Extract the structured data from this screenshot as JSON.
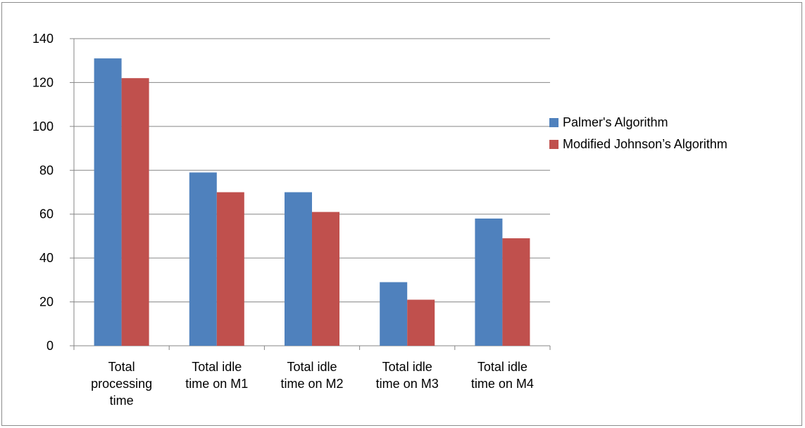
{
  "chart_data": {
    "type": "bar",
    "categories": [
      [
        "Total",
        "processing",
        "time"
      ],
      [
        "Total idle",
        "time on M1"
      ],
      [
        "Total idle",
        "time on M2"
      ],
      [
        "Total idle",
        "time on M3"
      ],
      [
        "Total idle",
        "time on M4"
      ]
    ],
    "series": [
      {
        "name": "Palmer's Algorithm",
        "color": "#4f81bd",
        "values": [
          131,
          79,
          70,
          29,
          58
        ]
      },
      {
        "name": "Modified Johnson’s Algorithm",
        "color": "#c0504d",
        "values": [
          122,
          70,
          61,
          21,
          49
        ]
      }
    ],
    "ylim": [
      0,
      140
    ],
    "yticks": [
      0,
      20,
      40,
      60,
      80,
      100,
      120,
      140
    ],
    "grid": true,
    "legend": "right"
  }
}
